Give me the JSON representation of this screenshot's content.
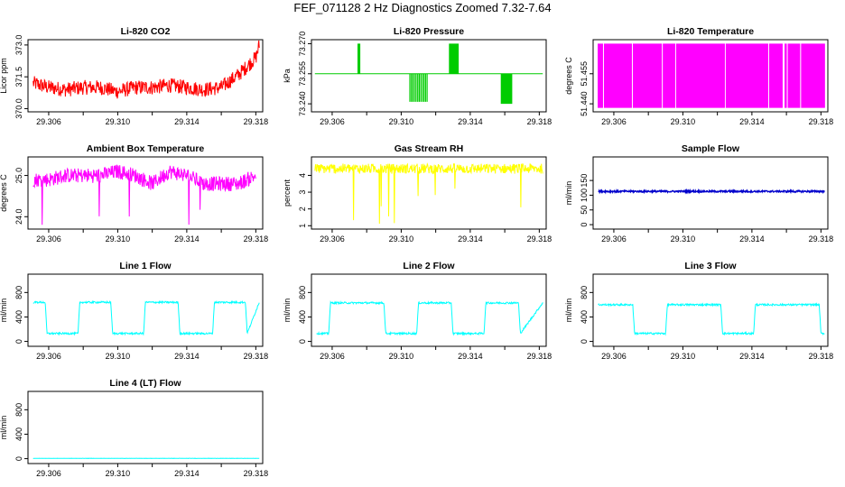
{
  "main_title": "FEF_071128  2 Hz Diagnostics Zoomed 7.32-7.64",
  "colors": {
    "co2": "#ff0000",
    "pressure": "#00cc00",
    "temp": "#ff00ff",
    "ambient": "#ff00ff",
    "rh": "#ffff00",
    "sample": "#0000cc",
    "line": "#00ffff"
  },
  "chart_data": [
    {
      "id": "co2",
      "type": "line",
      "title": "Li-820 CO2",
      "ylabel": "Licor ppm",
      "xlim": [
        29.3048,
        29.3184
      ],
      "ylim": [
        369.85,
        373.25
      ],
      "xticks": [
        29.306,
        29.31,
        29.314,
        29.318
      ],
      "xtick_labels": [
        "29.306",
        "29.310",
        "29.314",
        "29.318"
      ],
      "yticks": [
        370.0,
        371.5,
        373.0
      ],
      "ytick_labels": [
        "370.0",
        "371.5",
        "373.0"
      ],
      "series": [
        {
          "name": "CO2",
          "x": [
            29.3051,
            29.306,
            29.307,
            29.308,
            29.309,
            29.31,
            29.311,
            29.312,
            29.313,
            29.314,
            29.315,
            29.316,
            29.317,
            29.3175,
            29.318,
            29.3182
          ],
          "values": [
            371.2,
            371.0,
            370.9,
            371.0,
            371.0,
            370.8,
            371.0,
            371.0,
            371.1,
            371.0,
            370.9,
            371.0,
            371.6,
            372.0,
            372.4,
            373.0
          ]
        }
      ],
      "noise": 0.35
    },
    {
      "id": "pressure",
      "type": "line",
      "title": "Li-820 Pressure",
      "ylabel": "kPa",
      "xlim": [
        29.3048,
        29.3184
      ],
      "ylim": [
        73.236,
        73.272
      ],
      "xticks": [
        29.306,
        29.31,
        29.314,
        29.318
      ],
      "xtick_labels": [
        "29.306",
        "29.310",
        "29.314",
        "29.318"
      ],
      "yticks": [
        73.24,
        73.255,
        73.27
      ],
      "ytick_labels": [
        "73.240",
        "73.255",
        "73.270"
      ],
      "series": [
        {
          "name": "Pressure",
          "x": [
            29.305,
            29.3182
          ],
          "values": [
            73.255,
            73.255
          ]
        }
      ],
      "spikes": [
        {
          "x_start": 29.3075,
          "x_end": 29.3076,
          "value": 73.27
        },
        {
          "x_start": 29.3105,
          "x_end": 29.3115,
          "value": 73.241
        },
        {
          "x_start": 29.3128,
          "x_end": 29.3133,
          "value": 73.27
        },
        {
          "x_start": 29.3158,
          "x_end": 29.3164,
          "value": 73.24
        }
      ]
    },
    {
      "id": "temp",
      "type": "line",
      "title": "Li-820 Temperature",
      "ylabel": "degrees C",
      "xlim": [
        29.3048,
        29.3184
      ],
      "ylim": [
        51.436,
        51.472
      ],
      "xticks": [
        29.306,
        29.31,
        29.314,
        29.318
      ],
      "xtick_labels": [
        "29.306",
        "29.310",
        "29.314",
        "29.318"
      ],
      "yticks": [
        51.44,
        51.455
      ],
      "ytick_labels": [
        "51.440",
        "51.455"
      ],
      "series": [
        {
          "name": "Temperature",
          "x": [
            29.3051,
            29.3182
          ],
          "values": [
            51.47,
            51.438
          ]
        }
      ],
      "band": true
    },
    {
      "id": "ambient",
      "type": "line",
      "title": "Ambient Box Temperature",
      "ylabel": "degrees C",
      "xlim": [
        29.3048,
        29.3184
      ],
      "ylim": [
        23.7,
        25.45
      ],
      "xticks": [
        29.306,
        29.31,
        29.314,
        29.318
      ],
      "xtick_labels": [
        "29.306",
        "29.310",
        "29.314",
        "29.318"
      ],
      "yticks": [
        24.0,
        25.0
      ],
      "ytick_labels": [
        "24.0",
        "25.0"
      ],
      "series": [
        {
          "name": "Ambient",
          "x": [
            29.3051,
            29.306,
            29.307,
            29.308,
            29.309,
            29.31,
            29.311,
            29.312,
            29.313,
            29.314,
            29.315,
            29.316,
            29.317,
            29.318
          ],
          "values": [
            24.9,
            24.9,
            25.0,
            25.0,
            25.0,
            25.1,
            25.0,
            24.8,
            25.1,
            25.0,
            24.8,
            24.8,
            24.8,
            25.0
          ]
        }
      ],
      "noise": 0.18
    },
    {
      "id": "rh",
      "type": "line",
      "title": "Gas Stream RH",
      "ylabel": "percent",
      "xlim": [
        29.3048,
        29.3184
      ],
      "ylim": [
        0.8,
        5.1
      ],
      "xticks": [
        29.306,
        29.31,
        29.314,
        29.318
      ],
      "xtick_labels": [
        "29.306",
        "29.310",
        "29.314",
        "29.318"
      ],
      "yticks": [
        1,
        2,
        3,
        4
      ],
      "ytick_labels": [
        "1",
        "2",
        "3",
        "4"
      ],
      "series": [
        {
          "name": "RH",
          "x": [
            29.305,
            29.3182
          ],
          "values": [
            4.4,
            4.4
          ]
        }
      ],
      "noise": 0.3
    },
    {
      "id": "sample",
      "type": "line",
      "title": "Sample Flow",
      "ylabel": "ml/min",
      "xlim": [
        29.3048,
        29.3184
      ],
      "ylim": [
        -15,
        230
      ],
      "xticks": [
        29.306,
        29.31,
        29.314,
        29.318
      ],
      "xtick_labels": [
        "29.306",
        "29.310",
        "29.314",
        "29.318"
      ],
      "yticks": [
        0,
        50,
        100,
        150
      ],
      "ytick_labels": [
        "0",
        "50",
        "100",
        "150"
      ],
      "series": [
        {
          "name": "Sample Flow",
          "x": [
            29.3051,
            29.3182
          ],
          "values": [
            113,
            113
          ]
        }
      ],
      "noise": 3
    },
    {
      "id": "line1",
      "type": "line",
      "title": "Line 1 Flow",
      "ylabel": "ml/min",
      "xlim": [
        29.3048,
        29.3184
      ],
      "ylim": [
        -80,
        1100
      ],
      "xticks": [
        29.306,
        29.31,
        29.314,
        29.318
      ],
      "xtick_labels": [
        "29.306",
        "29.310",
        "29.314",
        "29.318"
      ],
      "yticks": [
        0,
        400,
        800
      ],
      "ytick_labels": [
        "0",
        "400",
        "800"
      ],
      "series": [
        {
          "name": "Line 1 Flow",
          "x": [
            29.3051,
            29.3058,
            29.3059,
            29.3077,
            29.3078,
            29.3096,
            29.3097,
            29.3115,
            29.3116,
            29.3135,
            29.3136,
            29.3155,
            29.3156,
            29.3174,
            29.3175,
            29.3182
          ],
          "values": [
            640,
            640,
            130,
            130,
            640,
            640,
            130,
            130,
            640,
            640,
            130,
            130,
            640,
            640,
            130,
            640
          ]
        }
      ],
      "noise": 15
    },
    {
      "id": "line2",
      "type": "line",
      "title": "Line 2 Flow",
      "ylabel": "ml/min",
      "xlim": [
        29.3048,
        29.3184
      ],
      "ylim": [
        -80,
        1100
      ],
      "xticks": [
        29.306,
        29.31,
        29.314,
        29.318
      ],
      "xtick_labels": [
        "29.306",
        "29.310",
        "29.314",
        "29.318"
      ],
      "yticks": [
        0,
        400,
        800
      ],
      "ytick_labels": [
        "0",
        "400",
        "800"
      ],
      "series": [
        {
          "name": "Line 2 Flow",
          "x": [
            29.3051,
            29.3058,
            29.3059,
            29.309,
            29.3091,
            29.3109,
            29.311,
            29.3129,
            29.313,
            29.3148,
            29.3149,
            29.3168,
            29.3169,
            29.3182
          ],
          "values": [
            130,
            130,
            630,
            630,
            130,
            130,
            630,
            630,
            130,
            130,
            630,
            630,
            130,
            630
          ]
        }
      ],
      "noise": 15
    },
    {
      "id": "line3",
      "type": "line",
      "title": "Line 3 Flow",
      "ylabel": "ml/min",
      "xlim": [
        29.3048,
        29.3184
      ],
      "ylim": [
        -80,
        1100
      ],
      "xticks": [
        29.306,
        29.31,
        29.314,
        29.318
      ],
      "xtick_labels": [
        "29.306",
        "29.310",
        "29.314",
        "29.318"
      ],
      "yticks": [
        0,
        400,
        800
      ],
      "ytick_labels": [
        "0",
        "400",
        "800"
      ],
      "series": [
        {
          "name": "Line 3 Flow",
          "x": [
            29.3051,
            29.3071,
            29.3072,
            29.309,
            29.3091,
            29.3122,
            29.3123,
            29.3141,
            29.3142,
            29.3179,
            29.318,
            29.3182
          ],
          "values": [
            600,
            600,
            130,
            130,
            600,
            600,
            130,
            130,
            600,
            600,
            130,
            130
          ]
        }
      ],
      "noise": 15
    },
    {
      "id": "line4",
      "type": "line",
      "title": "Line 4 (LT) Flow",
      "ylabel": "ml/min",
      "xlim": [
        29.3048,
        29.3184
      ],
      "ylim": [
        -80,
        1100
      ],
      "xticks": [
        29.306,
        29.31,
        29.314,
        29.318
      ],
      "xtick_labels": [
        "29.306",
        "29.310",
        "29.314",
        "29.318"
      ],
      "yticks": [
        0,
        400,
        800
      ],
      "ytick_labels": [
        "0",
        "400",
        "800"
      ],
      "series": [
        {
          "name": "Line 4 (LT) Flow",
          "x": [
            29.3051,
            29.3182
          ],
          "values": [
            5,
            5
          ]
        }
      ],
      "noise": 2
    }
  ]
}
